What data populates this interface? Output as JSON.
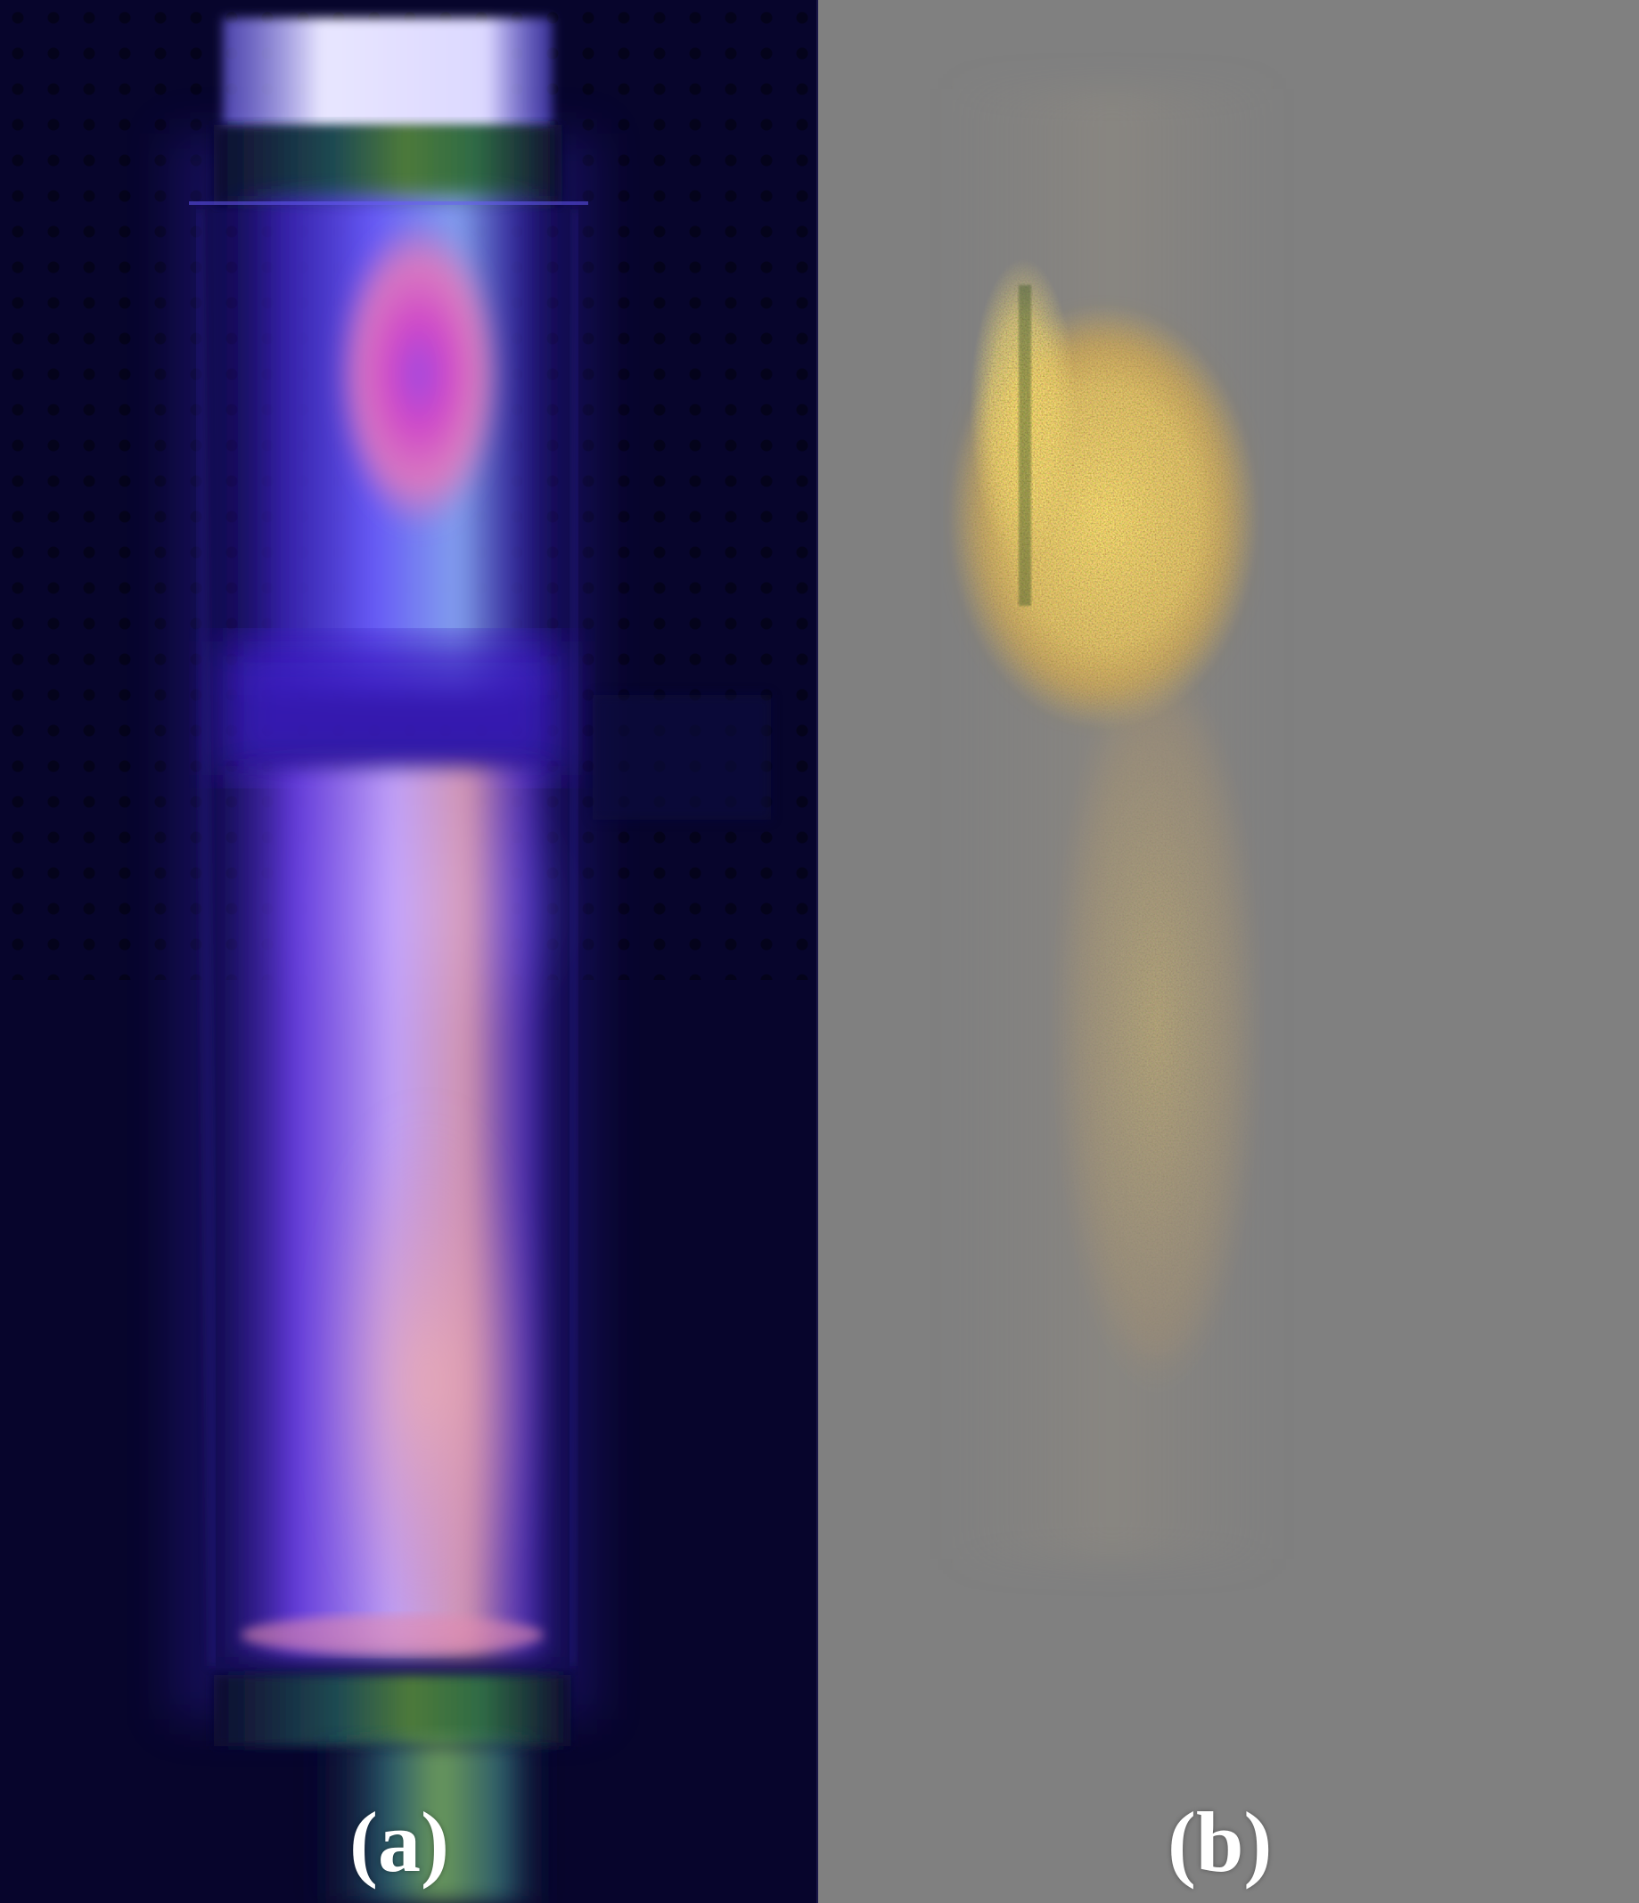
{
  "figure": {
    "panels": [
      {
        "id": "a",
        "label": "(a)",
        "background": "#07052c"
      },
      {
        "id": "b",
        "label": "(b)",
        "background": "#808080"
      }
    ],
    "colors": {
      "plasma_blue": "#5b4bff",
      "plasma_violet": "#8a3cf0",
      "plasma_pink": "#e06aa8",
      "tube_highlight": "#dcd8ff",
      "band_green": "#2f6b45",
      "speckle_orange": "#f0a93a",
      "speckle_red": "#c93a2a",
      "neutral_gray": "#808080"
    }
  }
}
